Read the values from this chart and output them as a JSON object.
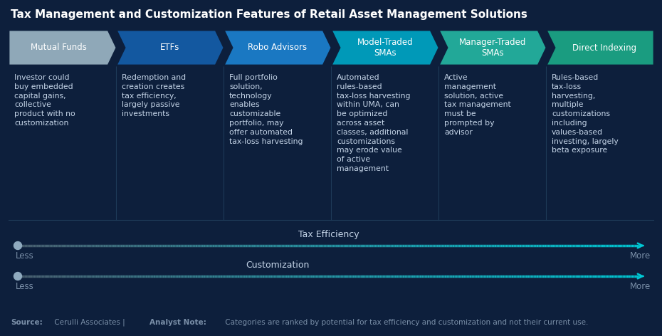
{
  "title": "Tax Management and Customization Features of Retail Asset Management Solutions",
  "bg_color": "#0d1f3c",
  "header_colors": [
    "#8fa8b8",
    "#1358a0",
    "#1a78c2",
    "#0099b8",
    "#22a898",
    "#1a9c80"
  ],
  "header_labels": [
    "Mutual Funds",
    "ETFs",
    "Robo Advisors",
    "Model-Traded\nSMAs",
    "Manager-Traded\nSMAs",
    "Direct Indexing"
  ],
  "body_texts": [
    "Investor could\nbuy embedded\ncapital gains,\ncollective\nproduct with no\ncustomization",
    "Redemption and\ncreation creates\ntax efficiency,\nlargely passive\ninvestments",
    "Full portfolio\nsolution,\ntechnology\nenables\ncustomizable\nportfolio, may\noffer automated\ntax-loss harvesting",
    "Automated\nrules-based\ntax-loss harvesting\nwithin UMA, can\nbe optimized\nacross asset\nclasses, additional\ncustomizations\nmay erode value\nof active\nmanagement",
    "Active\nmanagement\nsolution, active\ntax management\nmust be\nprompted by\nadvisor",
    "Rules-based\ntax-loss\nharvesting,\nmultiple\ncustomizations\nincluding\nvalues-based\ninvesting, largely\nbeta exposure"
  ],
  "arrow_label_1": "Tax Efficiency",
  "arrow_label_2": "Customization",
  "less_label": "Less",
  "more_label": "More",
  "title_color": "#ffffff",
  "header_text_color": "#ffffff",
  "body_text_color": "#c5d5e8",
  "source_color": "#7a8fa8"
}
